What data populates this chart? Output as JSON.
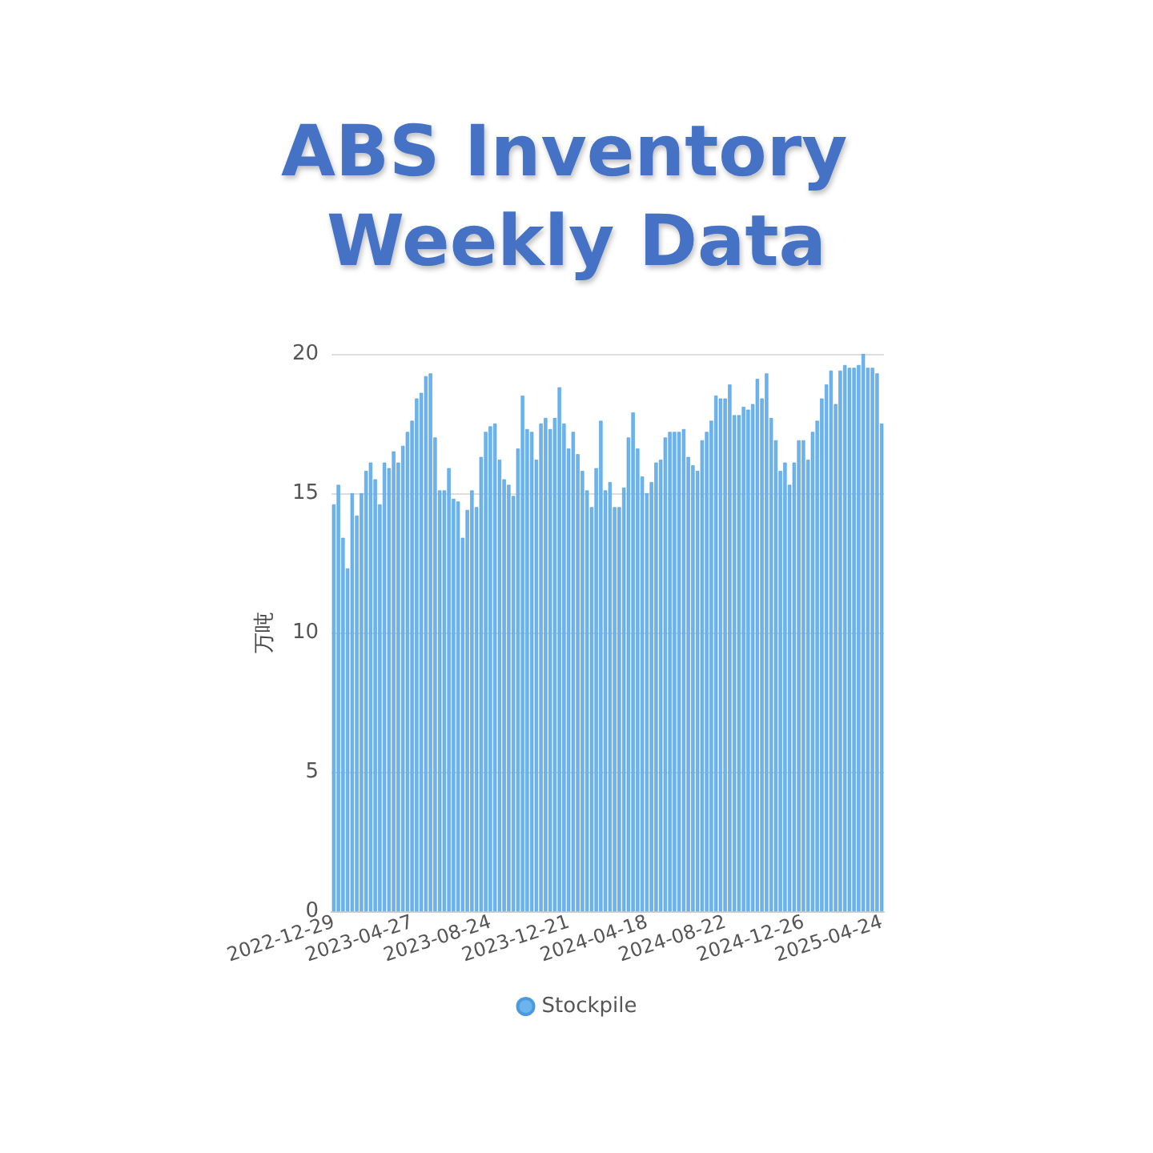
{
  "chart_data": {
    "type": "bar",
    "title": "ABS Inventory Weekly Data",
    "ylabel": "万吨",
    "categories": [
      "2022-12-29",
      null,
      null,
      null,
      null,
      null,
      null,
      null,
      null,
      null,
      null,
      null,
      null,
      null,
      null,
      null,
      null,
      "2023-04-27",
      null,
      null,
      null,
      null,
      null,
      null,
      null,
      null,
      null,
      null,
      null,
      null,
      null,
      null,
      null,
      null,
      "2023-08-24",
      null,
      null,
      null,
      null,
      null,
      null,
      null,
      null,
      null,
      null,
      null,
      null,
      null,
      null,
      null,
      null,
      "2023-12-21",
      null,
      null,
      null,
      null,
      null,
      null,
      null,
      null,
      null,
      null,
      null,
      null,
      null,
      null,
      null,
      null,
      "2024-04-18",
      null,
      null,
      null,
      null,
      null,
      null,
      null,
      null,
      null,
      null,
      null,
      null,
      null,
      null,
      null,
      null,
      "2024-08-22",
      null,
      null,
      null,
      null,
      null,
      null,
      null,
      null,
      null,
      null,
      null,
      null,
      null,
      null,
      null,
      null,
      "2024-12-26",
      null,
      null,
      null,
      null,
      null,
      null,
      null,
      null,
      null,
      null,
      null,
      null,
      null,
      null,
      null,
      null,
      "2025-04-24"
    ],
    "series": [
      {
        "name": "Stockpile",
        "color": "#6cb4ee",
        "values": [
          14.6,
          15.3,
          13.4,
          12.3,
          15.0,
          14.2,
          15.0,
          15.8,
          16.1,
          15.5,
          14.6,
          16.1,
          15.9,
          16.5,
          16.1,
          16.7,
          17.2,
          17.6,
          18.4,
          18.6,
          19.2,
          19.3,
          17.0,
          15.1,
          15.1,
          15.9,
          14.8,
          14.7,
          13.4,
          14.4,
          15.1,
          14.5,
          16.3,
          17.2,
          17.4,
          17.5,
          16.2,
          15.5,
          15.3,
          14.9,
          16.6,
          18.5,
          17.3,
          17.2,
          16.2,
          17.5,
          17.7,
          17.3,
          17.7,
          18.8,
          17.5,
          16.6,
          17.2,
          16.4,
          15.8,
          15.1,
          14.5,
          15.9,
          17.6,
          15.1,
          15.4,
          14.5,
          14.5,
          15.2,
          17.0,
          17.9,
          16.6,
          15.6,
          15.0,
          15.4,
          16.1,
          16.2,
          17.0,
          17.2,
          17.2,
          17.2,
          17.3,
          16.3,
          16.0,
          15.8,
          16.9,
          17.2,
          17.6,
          18.5,
          18.4,
          18.4,
          18.9,
          17.8,
          17.8,
          18.1,
          18.0,
          18.2,
          19.1,
          18.4,
          19.3,
          17.7,
          16.9,
          15.8,
          16.1,
          15.3,
          16.1,
          16.9,
          16.9,
          16.2,
          17.2,
          17.6,
          18.4,
          18.9,
          19.4,
          18.2,
          19.4,
          19.6,
          19.5,
          19.5,
          19.6,
          20.0,
          19.5,
          19.5,
          19.3,
          17.5
        ]
      }
    ],
    "ylim": [
      0,
      20
    ],
    "yticks": [
      0,
      5,
      10,
      15,
      20
    ],
    "grid": "y",
    "legend": "bottom"
  }
}
